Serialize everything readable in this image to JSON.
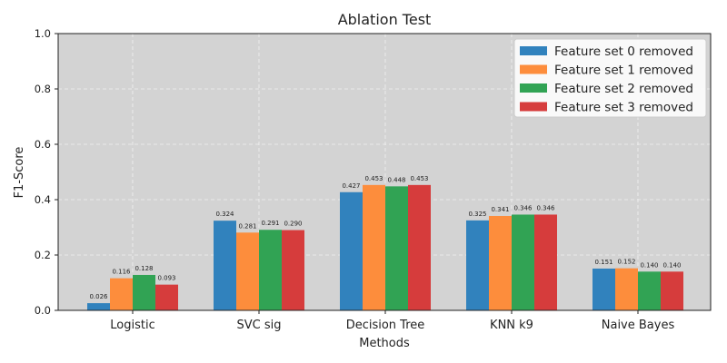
{
  "chart_data": {
    "type": "bar",
    "title": "Ablation Test",
    "xlabel": "Methods",
    "ylabel": "F1-Score",
    "ylim": [
      0,
      1.0
    ],
    "yticks": [
      "0.0",
      "0.2",
      "0.4",
      "0.6",
      "0.8",
      "1.0"
    ],
    "grid": true,
    "legend_position": "top-right",
    "categories": [
      "Logistic",
      "SVC sig",
      "Decision Tree",
      "KNN k9",
      "Naive Bayes"
    ],
    "series": [
      {
        "name": "Feature set 0 removed",
        "color": "#3182bd",
        "values": [
          0.026,
          0.324,
          0.427,
          0.325,
          0.151
        ],
        "labels": [
          "0.026",
          "0.324",
          "0.427",
          "0.325",
          "0.151"
        ]
      },
      {
        "name": "Feature set 1 removed",
        "color": "#fd8d3c",
        "values": [
          0.116,
          0.281,
          0.453,
          0.341,
          0.152
        ],
        "labels": [
          "0.116",
          "0.281",
          "0.453",
          "0.341",
          "0.152"
        ]
      },
      {
        "name": "Feature set 2 removed",
        "color": "#31a354",
        "values": [
          0.128,
          0.291,
          0.448,
          0.346,
          0.14
        ],
        "labels": [
          "0.128",
          "0.291",
          "0.448",
          "0.346",
          "0.140"
        ]
      },
      {
        "name": "Feature set 3 removed",
        "color": "#d63c3c",
        "values": [
          0.093,
          0.29,
          0.453,
          0.346,
          0.14
        ],
        "labels": [
          "0.093",
          "0.290",
          "0.453",
          "0.346",
          "0.140"
        ]
      }
    ],
    "plot_background": "#d3d3d3"
  }
}
